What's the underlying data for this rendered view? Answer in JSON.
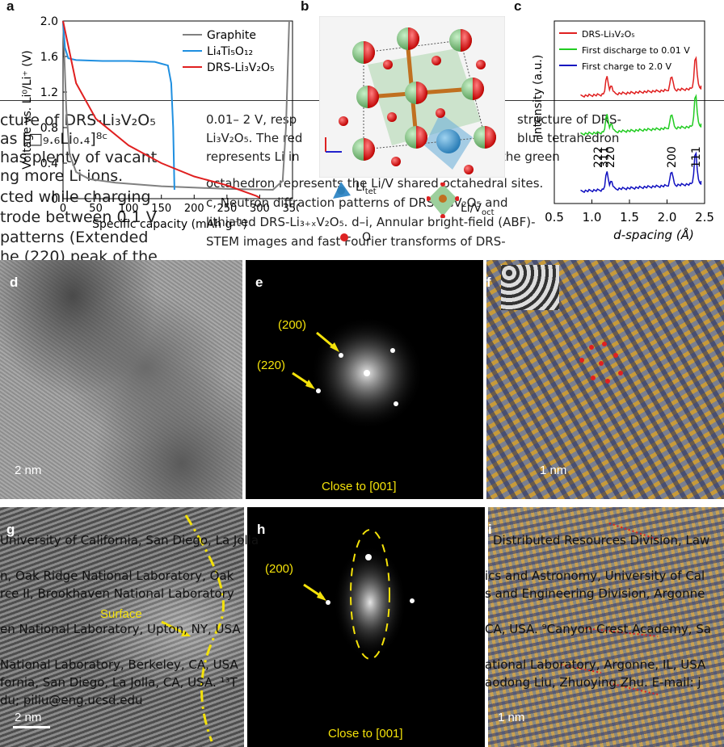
{
  "panels": {
    "a": {
      "letter": "a"
    },
    "b": {
      "letter": "b"
    },
    "c": {
      "letter": "c"
    },
    "d": {
      "letter": "d",
      "scale": "2 nm"
    },
    "e": {
      "letter": "e",
      "zone": "Close to [001]",
      "spot1": "(200)",
      "spot2": "(220)"
    },
    "f": {
      "letter": "f",
      "scale": "1 nm"
    },
    "g": {
      "letter": "g",
      "scale": "2 nm",
      "surface": "Surface"
    },
    "h": {
      "letter": "h",
      "zone": "Close to [001]",
      "spot1": "(200)"
    },
    "i": {
      "letter": "i",
      "scale": "1 nm"
    }
  },
  "crystal": {
    "li_tet": "Li",
    "li_tet_sub": "tet",
    "li_oct": "Li/V",
    "li_oct_sub": "oct",
    "o_label": "O"
  },
  "chart_data": [
    {
      "type": "line",
      "panel": "a",
      "ylabel": "Voltage vs. Li⁰/Li⁺ (V)",
      "xlabel": "Specific capacity (mAh g⁻¹)",
      "ylim": [
        0,
        2.0
      ],
      "xlim": [
        0,
        350
      ],
      "yticks": [
        "2.0",
        "1.6",
        "1.2",
        "0.8",
        "0.4",
        "0"
      ],
      "xticks": [
        "0",
        "50",
        "100",
        "150",
        "200",
        "250",
        "300",
        "350"
      ],
      "legend_placement": "top-right",
      "series": [
        {
          "name": "Graphite",
          "color": "#808080",
          "x": [
            0,
            5,
            10,
            20,
            40,
            80,
            150,
            250,
            320,
            335,
            340,
            345
          ],
          "y": [
            2.0,
            1.0,
            0.5,
            0.3,
            0.22,
            0.18,
            0.14,
            0.11,
            0.1,
            0.2,
            0.8,
            2.0
          ]
        },
        {
          "name": "Li₄Ti₅O₁₂",
          "color": "#1f8fe0",
          "x": [
            0,
            3,
            8,
            20,
            60,
            100,
            140,
            160,
            165,
            168,
            170
          ],
          "y": [
            2.0,
            1.7,
            1.58,
            1.56,
            1.55,
            1.55,
            1.54,
            1.5,
            1.3,
            0.8,
            0.1
          ]
        },
        {
          "name": "DRS-Li₃V₂O₅",
          "color": "#e02020",
          "x": [
            0,
            20,
            50,
            100,
            150,
            200,
            250,
            280,
            295,
            300
          ],
          "y": [
            2.0,
            1.3,
            0.9,
            0.6,
            0.4,
            0.25,
            0.15,
            0.07,
            0.03,
            0.01
          ]
        }
      ]
    },
    {
      "type": "line",
      "panel": "c",
      "ylabel": "Intensity (a.u.)",
      "xlabel": "d-spacing (Å)",
      "xlim": [
        0.5,
        2.5
      ],
      "xticks": [
        "0.5",
        "1.0",
        "1.5",
        "2.0",
        "2.5"
      ],
      "legend_placement": "top-left",
      "peaks": [
        "222",
        "311",
        "220",
        "200",
        "111"
      ],
      "series": [
        {
          "name": "DRS-Li₃V₂O₅",
          "color": "#e02020"
        },
        {
          "name": "First discharge to 0.01 V",
          "color": "#22cc22"
        },
        {
          "name": "First charge to 2.0 V",
          "color": "#1010c0"
        }
      ]
    }
  ],
  "background_text": [
    "cture of DRS-Li₃V₂O₅",
    "as  [□₉.₆Li₀.₄]⁸ᶜ",
    "has plenty of vacant",
    "ng more Li ions.",
    "cted while charging",
    "trode between 0.1 V",
    "patterns (Extended",
    "he (220) peak of the",
    "0.01– 2 V, resp",
    "structure of DRS-",
    "Li₃V₂O₅. The red",
    "blue tetrahedron",
    "represents Li in",
    "the green",
    "octahedron represents the Li/V shared octahedral sites.",
    "c, Neutron diffraction patterns of DRS-Li₃V₂O₅ and",
    "lithiated DRS-Li₃₊ₓV₂O₅. d–i, Annular bright-field (ABF)-",
    "STEM images and fast Fourier transforms of DRS-",
    "University of California, San Diego, La Jolla",
    "Distributed Resources Division, Law",
    "n, Oak Ridge National Laboratory, Oak",
    "ics and Astronomy, University of Cal",
    "rce II, Brookhaven National Laboratory",
    "s and Engineering Division, Argonne",
    "en National Laboratory, Upton, NY, USA",
    "CA, USA. ⁹Canyon Crest Academy, Sa",
    "National Laboratory, Berkeley, CA, USA",
    "ational Laboratory, Argonne, IL, USA",
    "fornia, San Diego, La Jolla, CA, USA. ¹³T",
    "aodong Liu, Zhuoying Zhu. E-mail: j",
    "du; piliu@eng.ucsd.edu"
  ]
}
